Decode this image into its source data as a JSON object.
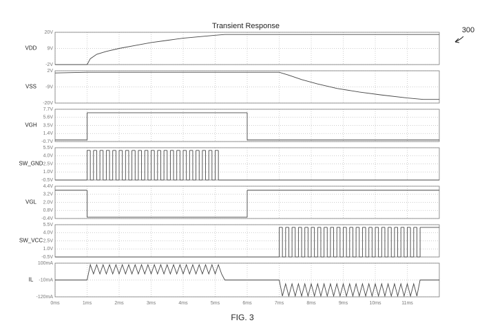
{
  "title": "Transient Response",
  "figure_label": "FIG. 3",
  "reference": "300",
  "chart_data": [
    {
      "type": "line",
      "ylabel": "VDD",
      "color": "#444444",
      "step": false,
      "grid": true,
      "xlim": [
        0,
        12
      ],
      "ylim": [
        -2,
        20
      ],
      "yticks": [
        {
          "value": 20,
          "label": "20V"
        },
        {
          "value": 9,
          "label": "9V"
        },
        {
          "value": -2,
          "label": "-2V"
        }
      ],
      "x": [
        0,
        1,
        1.1,
        1.3,
        1.6,
        2,
        2.5,
        3,
        3.5,
        4,
        4.5,
        5,
        5.3,
        12
      ],
      "values": [
        -2,
        -2,
        2,
        5,
        7,
        9,
        11,
        13,
        14.5,
        16,
        17,
        18,
        18.5,
        18.5
      ]
    },
    {
      "type": "line",
      "ylabel": "VSS",
      "color": "#444444",
      "step": false,
      "grid": true,
      "xlim": [
        0,
        12
      ],
      "ylim": [
        -20,
        2
      ],
      "yticks": [
        {
          "value": 2,
          "label": "2V"
        },
        {
          "value": -9,
          "label": "-9V"
        },
        {
          "value": -20,
          "label": "-20V"
        }
      ],
      "x": [
        0,
        1,
        7,
        7.3,
        7.7,
        8.2,
        8.8,
        9.5,
        10.2,
        11,
        11.5,
        12
      ],
      "values": [
        0.5,
        1,
        1,
        -1,
        -4,
        -7,
        -10,
        -12.5,
        -14.5,
        -16.5,
        -17.5,
        -17.5
      ]
    },
    {
      "type": "line",
      "ylabel": "VGH",
      "color": "#444444",
      "step": true,
      "grid": true,
      "xlim": [
        0,
        12
      ],
      "ylim": [
        -0.7,
        7.7
      ],
      "yticks": [
        {
          "value": 7.7,
          "label": "7.7V"
        },
        {
          "value": 5.6,
          "label": "5.6V"
        },
        {
          "value": 3.5,
          "label": "3.5V"
        },
        {
          "value": 1.4,
          "label": "1.4V"
        },
        {
          "value": -0.7,
          "label": "-0.7V"
        }
      ],
      "x": [
        0,
        1,
        6,
        12
      ],
      "values": [
        -0.3,
        6.8,
        -0.3,
        -0.3
      ]
    },
    {
      "type": "line",
      "ylabel": "SW_GND",
      "color": "#444444",
      "step": true,
      "grid": true,
      "xlim": [
        0,
        12
      ],
      "ylim": [
        -0.5,
        5.5
      ],
      "yticks": [
        {
          "value": 5.5,
          "label": "5.5V"
        },
        {
          "value": 4,
          "label": "4.0V"
        },
        {
          "value": 2.5,
          "label": "2.5V"
        },
        {
          "value": 1,
          "label": "1.0V"
        },
        {
          "value": -0.5,
          "label": "-0.5V"
        }
      ],
      "x": [
        0,
        1,
        1.1,
        1.2,
        1.3,
        1.4,
        1.5,
        1.6,
        1.7,
        1.8,
        1.9,
        2,
        2.1,
        2.2,
        2.3,
        2.4,
        2.5,
        2.6,
        2.7,
        2.8,
        2.9,
        3,
        3.1,
        3.2,
        3.3,
        3.4,
        3.5,
        3.6,
        3.7,
        3.8,
        3.9,
        4,
        4.1,
        4.2,
        4.3,
        4.4,
        4.5,
        4.6,
        4.7,
        4.8,
        4.9,
        5,
        5.1,
        12
      ],
      "values": [
        -0.5,
        5,
        -0.5,
        5,
        -0.5,
        5,
        -0.5,
        5,
        -0.5,
        5,
        -0.5,
        5,
        -0.5,
        5,
        -0.5,
        5,
        -0.5,
        5,
        -0.5,
        5,
        -0.5,
        5,
        -0.5,
        5,
        -0.5,
        5,
        -0.5,
        5,
        -0.5,
        5,
        -0.5,
        5,
        -0.5,
        5,
        -0.5,
        5,
        -0.5,
        5,
        -0.5,
        5,
        -0.5,
        5,
        -0.5,
        -0.5
      ]
    },
    {
      "type": "line",
      "ylabel": "VGL",
      "color": "#444444",
      "step": true,
      "grid": true,
      "xlim": [
        0,
        12
      ],
      "ylim": [
        -0.4,
        4.4
      ],
      "yticks": [
        {
          "value": 4.4,
          "label": "4.4V"
        },
        {
          "value": 3.2,
          "label": "3.2V"
        },
        {
          "value": 2,
          "label": "2.0V"
        },
        {
          "value": 0.8,
          "label": "0.8V"
        },
        {
          "value": -0.4,
          "label": "-0.4V"
        }
      ],
      "x": [
        0,
        1,
        6,
        12
      ],
      "values": [
        3.8,
        -0.2,
        3.8,
        3.8
      ]
    },
    {
      "type": "line",
      "ylabel": "SW_VCC",
      "color": "#444444",
      "step": true,
      "grid": true,
      "xlim": [
        0,
        12
      ],
      "ylim": [
        -0.5,
        5.5
      ],
      "yticks": [
        {
          "value": 5.5,
          "label": "5.5V"
        },
        {
          "value": 4,
          "label": "4.0V"
        },
        {
          "value": 2.5,
          "label": "2.5V"
        },
        {
          "value": 1,
          "label": "1.0V"
        },
        {
          "value": -0.5,
          "label": "-0.5V"
        }
      ],
      "x": [
        0,
        7,
        7.1,
        7.2,
        7.3,
        7.4,
        7.5,
        7.6,
        7.7,
        7.8,
        7.9,
        8,
        8.1,
        8.2,
        8.3,
        8.4,
        8.5,
        8.6,
        8.7,
        8.8,
        8.9,
        9,
        9.1,
        9.2,
        9.3,
        9.4,
        9.5,
        9.6,
        9.7,
        9.8,
        9.9,
        10,
        10.1,
        10.2,
        10.3,
        10.4,
        10.5,
        10.6,
        10.7,
        10.8,
        10.9,
        11,
        11.1,
        11.2,
        11.3,
        11.4,
        12
      ],
      "values": [
        -0.5,
        5,
        -0.5,
        5,
        -0.5,
        5,
        -0.5,
        5,
        -0.5,
        5,
        -0.5,
        5,
        -0.5,
        5,
        -0.5,
        5,
        -0.5,
        5,
        -0.5,
        5,
        -0.5,
        5,
        -0.5,
        5,
        -0.5,
        5,
        -0.5,
        5,
        -0.5,
        5,
        -0.5,
        5,
        -0.5,
        5,
        -0.5,
        5,
        -0.5,
        5,
        -0.5,
        5,
        -0.5,
        5,
        -0.5,
        5,
        -0.5,
        5,
        5
      ]
    },
    {
      "type": "line",
      "ylabel": "IL",
      "color": "#444444",
      "step": false,
      "grid": true,
      "xlim": [
        0,
        12
      ],
      "ylim": [
        -120,
        100
      ],
      "yticks": [
        {
          "value": 100,
          "label": "100mA"
        },
        {
          "value": -10,
          "label": "-10mA"
        },
        {
          "value": -120,
          "label": "-120mA"
        }
      ],
      "xticks": [
        {
          "value": 0,
          "label": "0ms"
        },
        {
          "value": 1,
          "label": "1ms"
        },
        {
          "value": 2,
          "label": "2ms"
        },
        {
          "value": 3,
          "label": "3ms"
        },
        {
          "value": 4,
          "label": "4ms"
        },
        {
          "value": 5,
          "label": "5ms"
        },
        {
          "value": 6,
          "label": "6ms"
        },
        {
          "value": 7,
          "label": "7ms"
        },
        {
          "value": 8,
          "label": "8ms"
        },
        {
          "value": 9,
          "label": "9ms"
        },
        {
          "value": 10,
          "label": "10ms"
        },
        {
          "value": 11,
          "label": "11ms"
        }
      ],
      "x": [
        0,
        1,
        1.1,
        1.2,
        1.3,
        1.4,
        1.5,
        1.6,
        1.7,
        1.8,
        1.9,
        2,
        2.1,
        2.2,
        2.3,
        2.4,
        2.5,
        2.6,
        2.7,
        2.8,
        2.9,
        3,
        3.1,
        3.2,
        3.3,
        3.4,
        3.5,
        3.6,
        3.7,
        3.8,
        3.9,
        4,
        4.1,
        4.2,
        4.3,
        4.4,
        4.5,
        4.6,
        4.7,
        4.8,
        4.9,
        5,
        5.1,
        5.2,
        5.3,
        7,
        7.1,
        7.2,
        7.3,
        7.4,
        7.5,
        7.6,
        7.7,
        7.8,
        7.9,
        8,
        8.1,
        8.2,
        8.3,
        8.4,
        8.5,
        8.6,
        8.7,
        8.8,
        8.9,
        9,
        9.1,
        9.2,
        9.3,
        9.4,
        9.5,
        9.6,
        9.7,
        9.8,
        9.9,
        10,
        10.1,
        10.2,
        10.3,
        10.4,
        10.5,
        10.6,
        10.7,
        10.8,
        10.9,
        11,
        11.1,
        11.2,
        11.3,
        11.4,
        12
      ],
      "values": [
        -10,
        -10,
        90,
        30,
        90,
        30,
        90,
        30,
        90,
        30,
        90,
        30,
        90,
        30,
        90,
        30,
        90,
        30,
        90,
        30,
        90,
        30,
        90,
        30,
        90,
        30,
        90,
        30,
        90,
        30,
        90,
        30,
        90,
        30,
        90,
        30,
        90,
        30,
        90,
        30,
        90,
        30,
        90,
        30,
        -10,
        -10,
        -115,
        -35,
        -115,
        -35,
        -115,
        -35,
        -115,
        -35,
        -115,
        -35,
        -115,
        -35,
        -115,
        -35,
        -115,
        -35,
        -115,
        -35,
        -115,
        -35,
        -115,
        -35,
        -115,
        -35,
        -115,
        -35,
        -115,
        -35,
        -115,
        -35,
        -115,
        -35,
        -115,
        -35,
        -115,
        -35,
        -115,
        -35,
        -115,
        -35,
        -115,
        -35,
        -115,
        -10,
        -10
      ]
    }
  ]
}
